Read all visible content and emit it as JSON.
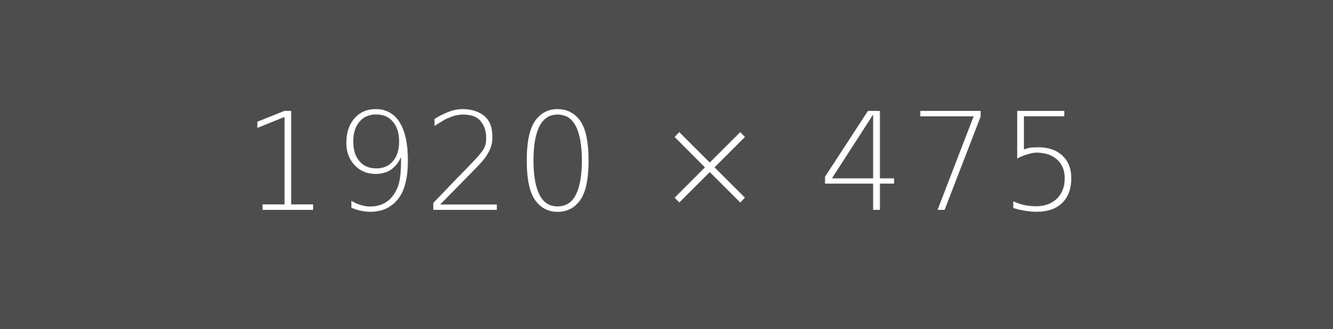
{
  "placeholder": {
    "label": "1920 × 475",
    "background_color": "#4d4d4d",
    "text_color": "#ffffff"
  }
}
